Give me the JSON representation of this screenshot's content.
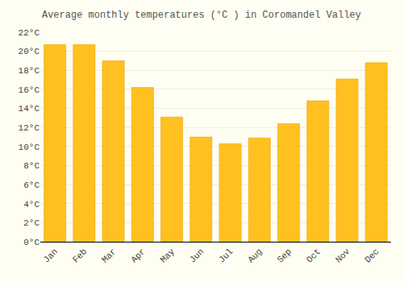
{
  "chart_data": {
    "type": "bar",
    "title": "Average monthly temperatures (°C ) in Coromandel Valley",
    "categories": [
      "Jan",
      "Feb",
      "Mar",
      "Apr",
      "May",
      "Jun",
      "Jul",
      "Aug",
      "Sep",
      "Oct",
      "Nov",
      "Dec"
    ],
    "values": [
      20.7,
      20.7,
      19.0,
      16.2,
      13.1,
      11.0,
      10.3,
      10.9,
      12.4,
      14.8,
      17.1,
      18.8
    ],
    "color": "#FFC020",
    "ylim": [
      0,
      22
    ],
    "yticks": [
      {
        "value": 0,
        "label": "0°C"
      },
      {
        "value": 2,
        "label": "2°C"
      },
      {
        "value": 4,
        "label": "4°C"
      },
      {
        "value": 6,
        "label": "6°C"
      },
      {
        "value": 8,
        "label": "8°C"
      },
      {
        "value": 10,
        "label": "10°C"
      },
      {
        "value": 12,
        "label": "12°C"
      },
      {
        "value": 14,
        "label": "14°C"
      },
      {
        "value": 16,
        "label": "16°C"
      },
      {
        "value": 18,
        "label": "18°C"
      },
      {
        "value": 20,
        "label": "20°C"
      },
      {
        "value": 22,
        "label": "22°C"
      }
    ],
    "grid": true
  }
}
